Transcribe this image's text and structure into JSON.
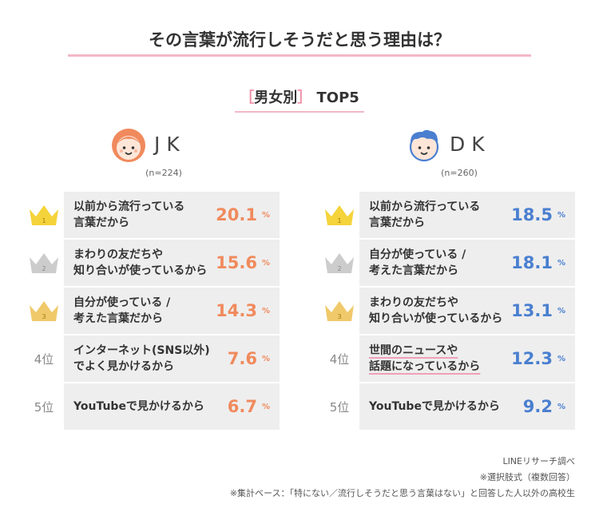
{
  "title": "その言葉が流行しそうだと思う理由は？",
  "subtitle": {
    "open": "［",
    "label": "男女別",
    "close": "］",
    "top": "TOP5"
  },
  "jk": {
    "name": "JK",
    "n": "(n=224)"
  },
  "dk": {
    "name": "DK",
    "n": "(n=260)"
  },
  "ranks": [
    "1",
    "2",
    "3",
    "4位",
    "5位"
  ],
  "pct_unit": "%",
  "colors": {
    "jk_accent": "#f08a5d",
    "dk_accent": "#4a7fd0",
    "gold": "#f5d33a",
    "silver": "#cccccc",
    "bronze": "#f0c96a",
    "pink_line": "#f2b8c6"
  },
  "chart_data": [
    {
      "type": "table",
      "title": "JK",
      "categories": [
        "以前から流行っている\n言葉だから",
        "まわりの友だちや\n知り合いが使っているから",
        "自分が使っている /\n考えた言葉だから",
        "インターネット(SNS以外)\nでよく見かけるから",
        "YouTubeで見かけるから"
      ],
      "values": [
        20.1,
        15.6,
        14.3,
        7.6,
        6.7
      ],
      "value_labels": [
        "20.1",
        "15.6",
        "14.3",
        "7.6",
        "6.7"
      ]
    },
    {
      "type": "table",
      "title": "DK",
      "categories": [
        "以前から流行っている\n言葉だから",
        "自分が使っている /\n考えた言葉だから",
        "まわりの友だちや\n知り合いが使っているから",
        "世間のニュースや\n話題になっているから",
        "YouTubeで見かけるから"
      ],
      "values": [
        18.5,
        18.1,
        13.1,
        12.3,
        9.2
      ],
      "value_labels": [
        "18.5",
        "18.1",
        "13.1",
        "12.3",
        "9.2"
      ]
    }
  ],
  "footer": {
    "source": "LINEリサーチ調べ",
    "note1": "※選択肢式（複数回答）",
    "note2": "※集計ベース：「特にない／流行しそうだと思う言葉はない」と回答した人以外の高校生"
  }
}
